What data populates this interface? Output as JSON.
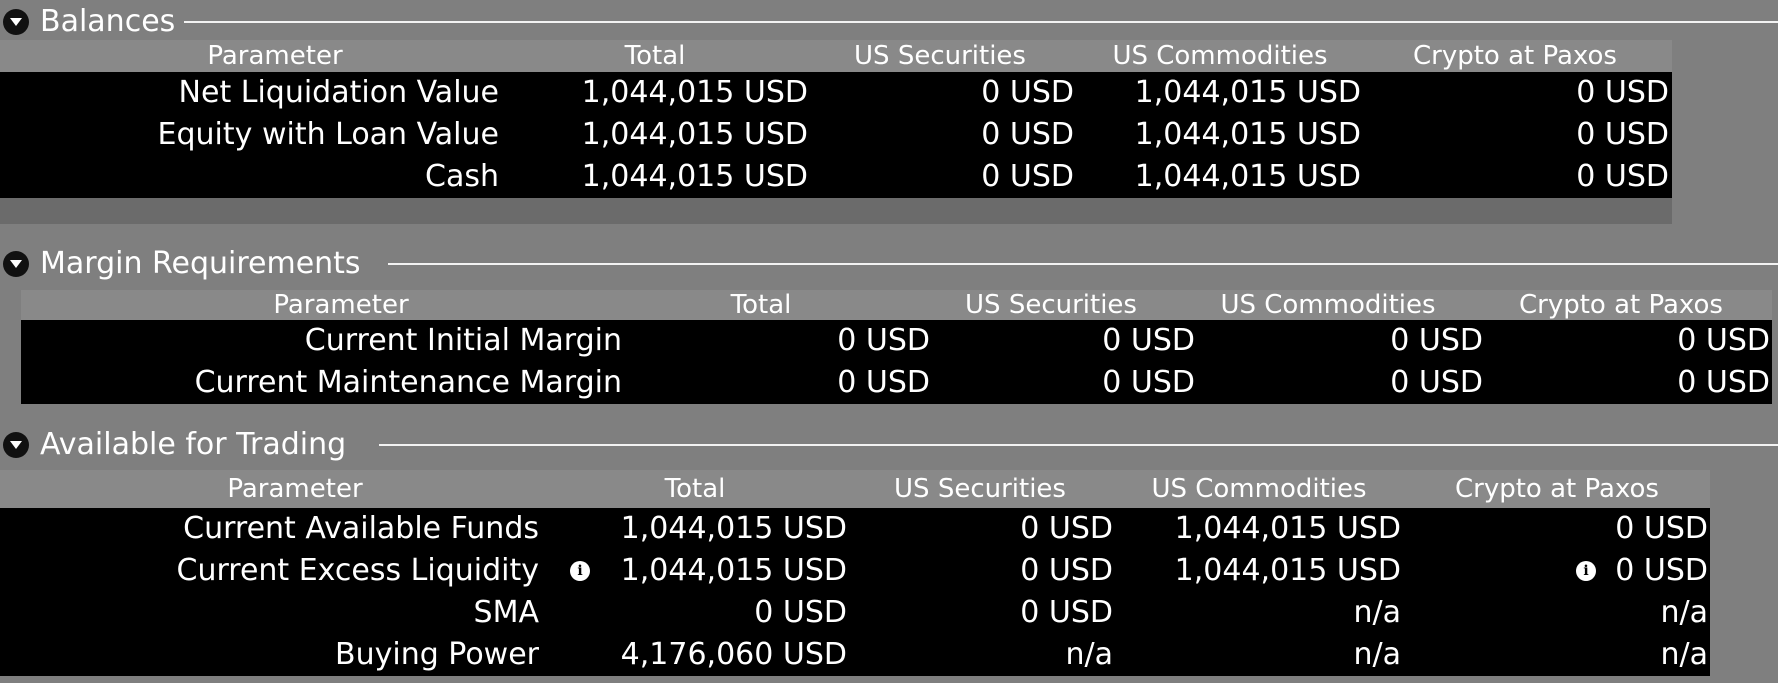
{
  "balances": {
    "title": "Balances",
    "headers": [
      "Parameter",
      "Total",
      "US Securities",
      "US Commodities",
      "Crypto at Paxos"
    ],
    "rows": [
      {
        "label": "Net Liquidation Value",
        "total": "1,044,015 USD",
        "us_sec": "0 USD",
        "us_com": "1,044,015 USD",
        "crypto": "0 USD"
      },
      {
        "label": "Equity with Loan Value",
        "total": "1,044,015 USD",
        "us_sec": "0 USD",
        "us_com": "1,044,015 USD",
        "crypto": "0 USD"
      },
      {
        "label": "Cash",
        "total": "1,044,015 USD",
        "us_sec": "0 USD",
        "us_com": "1,044,015 USD",
        "crypto": "0 USD"
      }
    ]
  },
  "margin": {
    "title": "Margin Requirements",
    "headers": [
      "Parameter",
      "Total",
      "US Securities",
      "US Commodities",
      "Crypto at Paxos"
    ],
    "rows": [
      {
        "label": "Current Initial Margin",
        "total": "0 USD",
        "us_sec": "0 USD",
        "us_com": "0 USD",
        "crypto": "0 USD"
      },
      {
        "label": "Current Maintenance Margin",
        "total": "0 USD",
        "us_sec": "0 USD",
        "us_com": "0 USD",
        "crypto": "0 USD"
      }
    ]
  },
  "trading": {
    "title": "Available for Trading",
    "headers": [
      "Parameter",
      "Total",
      "US Securities",
      "US Commodities",
      "Crypto at Paxos"
    ],
    "rows": [
      {
        "label": "Current Available Funds",
        "total": "1,044,015 USD",
        "us_sec": "0 USD",
        "us_com": "1,044,015 USD",
        "crypto": "0 USD"
      },
      {
        "label": "Current Excess Liquidity",
        "total": "1,044,015 USD",
        "us_sec": "0 USD",
        "us_com": "1,044,015 USD",
        "crypto": "0 USD"
      },
      {
        "label": "SMA",
        "total": "0 USD",
        "us_sec": "0 USD",
        "us_com": "n/a",
        "crypto": "n/a"
      },
      {
        "label": "Buying Power",
        "total": "4,176,060 USD",
        "us_sec": "n/a",
        "us_com": "n/a",
        "crypto": "n/a"
      }
    ]
  },
  "icons": {
    "collapse": "triangle-down-icon",
    "info": "info-icon",
    "info_glyph": "i"
  }
}
